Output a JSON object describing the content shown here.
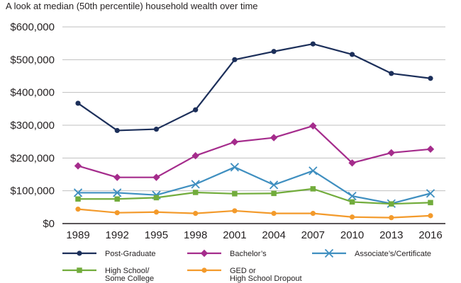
{
  "chart_data": {
    "type": "line",
    "title": "A look at median (50th percentile) household wealth over time",
    "xlabel": "",
    "ylabel": "",
    "categories": [
      "1989",
      "1992",
      "1995",
      "1998",
      "2001",
      "2004",
      "2007",
      "2010",
      "2013",
      "2016"
    ],
    "ylim": [
      0,
      600000
    ],
    "yticks": [
      0,
      100000,
      200000,
      300000,
      400000,
      500000,
      600000
    ],
    "ytick_labels": [
      "$0",
      "$100,000",
      "$200,000",
      "$300,000",
      "$400,000",
      "$500,000",
      "$600,000"
    ],
    "grid": true,
    "legend_position": "bottom",
    "series": [
      {
        "name": "Post-Graduate",
        "legend_lines": [
          "Post-Graduate"
        ],
        "color": "#1c2f5a",
        "marker": "circle",
        "values": [
          367000,
          284000,
          288000,
          347000,
          500000,
          525000,
          548000,
          516000,
          458000,
          443000
        ]
      },
      {
        "name": "Bachelor's",
        "legend_lines": [
          "Bachelor’s"
        ],
        "color": "#a52c8c",
        "marker": "diamond",
        "values": [
          176000,
          141000,
          141000,
          207000,
          249000,
          262000,
          298000,
          185000,
          216000,
          227000
        ]
      },
      {
        "name": "Associate's/Certificate",
        "legend_lines": [
          "Associate’s/Certificate"
        ],
        "color": "#3f8fc0",
        "marker": "x",
        "values": [
          94000,
          94000,
          87000,
          120000,
          172000,
          118000,
          161000,
          84000,
          61000,
          92000
        ]
      },
      {
        "name": "High School/ Some College",
        "legend_lines": [
          "High School/",
          "Some College"
        ],
        "color": "#72ac3c",
        "marker": "square",
        "values": [
          75000,
          75000,
          79000,
          95000,
          91000,
          92000,
          106000,
          66000,
          60000,
          64000
        ]
      },
      {
        "name": "GED or High School Dropout",
        "legend_lines": [
          "GED or",
          "High School Dropout"
        ],
        "color": "#f39a2b",
        "marker": "circle",
        "values": [
          44000,
          33000,
          35000,
          31000,
          39000,
          31000,
          31000,
          20000,
          18000,
          24000
        ]
      }
    ]
  }
}
